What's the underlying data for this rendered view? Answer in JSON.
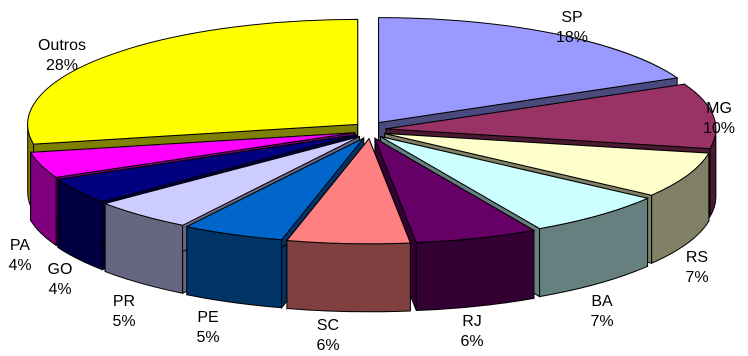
{
  "chart_data": {
    "type": "pie",
    "style": "3d-exploded",
    "title": "",
    "legend": "none",
    "slices": [
      {
        "label": "SP",
        "percent_label": "18%",
        "value": 18,
        "top_color": "#9999ff",
        "side_color": "#4a4a7f"
      },
      {
        "label": "MG",
        "percent_label": "10%",
        "value": 10,
        "top_color": "#993366",
        "side_color": "#4c1933"
      },
      {
        "label": "RS",
        "percent_label": "7%",
        "value": 7,
        "top_color": "#ffffcc",
        "side_color": "#808066"
      },
      {
        "label": "BA",
        "percent_label": "7%",
        "value": 7,
        "top_color": "#ccffff",
        "side_color": "#668080"
      },
      {
        "label": "RJ",
        "percent_label": "6%",
        "value": 6,
        "top_color": "#660066",
        "side_color": "#330033"
      },
      {
        "label": "SC",
        "percent_label": "6%",
        "value": 6,
        "top_color": "#ff8080",
        "side_color": "#804040"
      },
      {
        "label": "PE",
        "percent_label": "5%",
        "value": 5,
        "top_color": "#0066cc",
        "side_color": "#003366"
      },
      {
        "label": "PR",
        "percent_label": "5%",
        "value": 5,
        "top_color": "#ccccff",
        "side_color": "#666680"
      },
      {
        "label": "GO",
        "percent_label": "4%",
        "value": 4,
        "top_color": "#000080",
        "side_color": "#000040"
      },
      {
        "label": "PA",
        "percent_label": "4%",
        "value": 4,
        "top_color": "#ff00ff",
        "side_color": "#800080"
      },
      {
        "label": "Outros",
        "percent_label": "28%",
        "value": 28,
        "top_color": "#ffff00",
        "side_color": "#808000"
      }
    ]
  }
}
